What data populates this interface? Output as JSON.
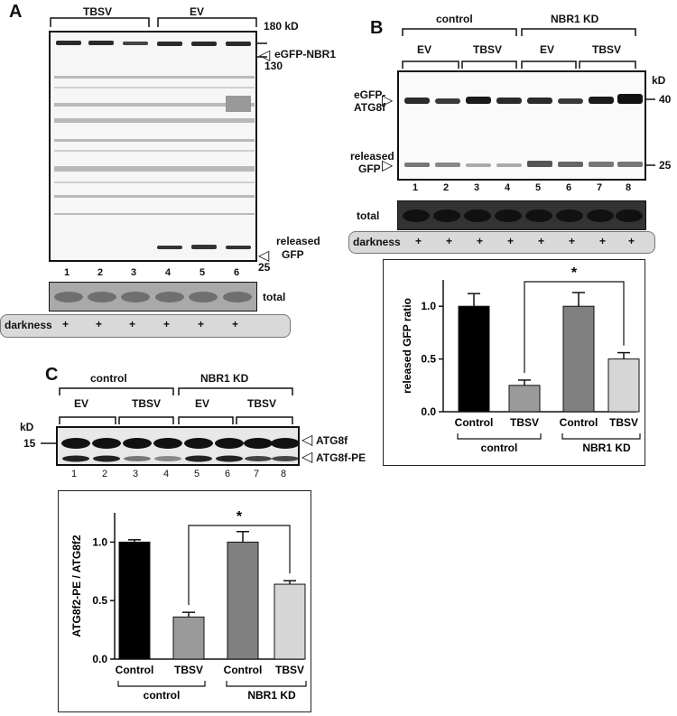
{
  "panelA": {
    "letter": "A",
    "group_labels": [
      "TBSV",
      "EV"
    ],
    "markers": [
      "180 kD",
      "130",
      "25"
    ],
    "bands": [
      "eGFP-NBR1",
      "released",
      "GFP"
    ],
    "lanes": [
      "1",
      "2",
      "3",
      "4",
      "5",
      "6"
    ],
    "total_label": "total",
    "darkness_label": "darkness",
    "plus": [
      "+",
      "+",
      "+",
      "+",
      "+",
      "+"
    ]
  },
  "panelB": {
    "letter": "B",
    "top_groups": [
      "control",
      "NBR1 KD"
    ],
    "sub_groups": [
      "EV",
      "TBSV",
      "EV",
      "TBSV"
    ],
    "bands": [
      "eGFP-",
      "ATG8f",
      "released",
      "GFP"
    ],
    "kd_label": "kD",
    "markers": [
      "40",
      "25"
    ],
    "lanes": [
      "1",
      "2",
      "3",
      "4",
      "5",
      "6",
      "7",
      "8"
    ],
    "total_label": "total",
    "darkness_label": "darkness",
    "plus": [
      "+",
      "+",
      "+",
      "+",
      "+",
      "+",
      "+",
      "+"
    ]
  },
  "panelC": {
    "letter": "C",
    "top_groups": [
      "control",
      "NBR1 KD"
    ],
    "sub_groups": [
      "EV",
      "TBSV",
      "EV",
      "TBSV"
    ],
    "kd_label": "kD",
    "marker": "15",
    "bands": [
      "ATG8f",
      "ATG8f-PE"
    ],
    "lanes": [
      "1",
      "2",
      "3",
      "4",
      "5",
      "6",
      "7",
      "8"
    ]
  },
  "chart_data": [
    {
      "type": "bar",
      "panel": "B",
      "ylabel": "released GFP ratio",
      "ylim": [
        0,
        1.25
      ],
      "yticks": [
        "0.0",
        "0.5",
        "1.0"
      ],
      "categories": [
        "Control",
        "TBSV",
        "Control",
        "TBSV"
      ],
      "groups": [
        "control",
        "NBR1 KD"
      ],
      "values": [
        1.0,
        0.25,
        1.0,
        0.5
      ],
      "errors": [
        0.12,
        0.05,
        0.13,
        0.06
      ],
      "colors": [
        "#000000",
        "#9a9a9a",
        "#808080",
        "#d6d6d6"
      ],
      "significance": "*"
    },
    {
      "type": "bar",
      "panel": "C",
      "ylabel": "ATG8f2-PE / ATG8f2",
      "ylim": [
        0,
        1.25
      ],
      "yticks": [
        "0.0",
        "0.5",
        "1.0"
      ],
      "categories": [
        "Control",
        "TBSV",
        "Control",
        "TBSV"
      ],
      "groups": [
        "control",
        "NBR1 KD"
      ],
      "values": [
        1.0,
        0.36,
        1.0,
        0.64
      ],
      "errors": [
        0.02,
        0.04,
        0.09,
        0.03
      ],
      "colors": [
        "#000000",
        "#9a9a9a",
        "#808080",
        "#d6d6d6"
      ],
      "significance": "*"
    }
  ]
}
